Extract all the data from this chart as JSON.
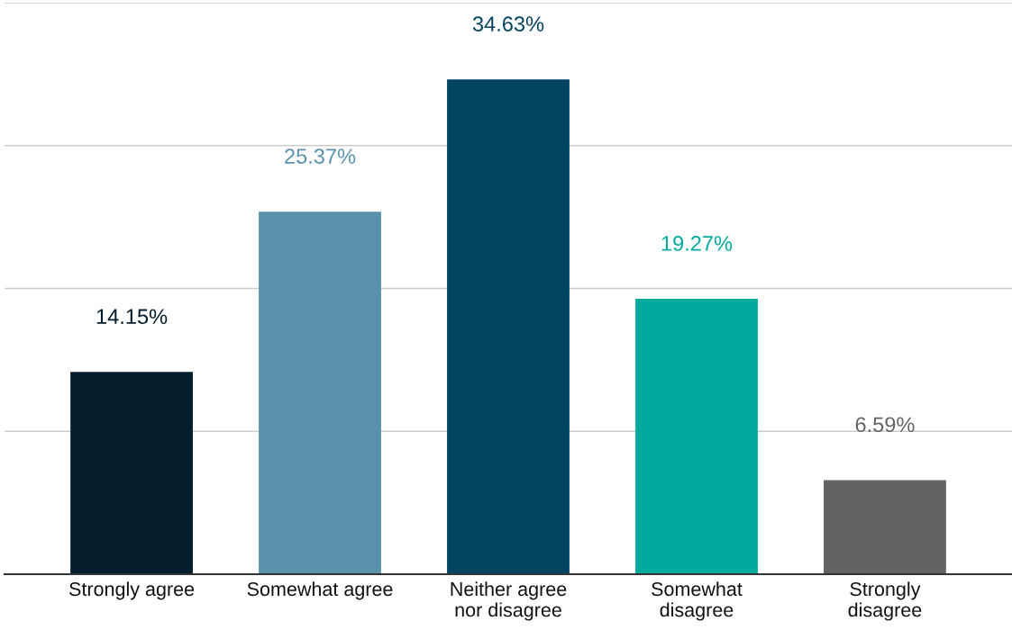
{
  "chart_data": {
    "type": "bar",
    "categories": [
      "Strongly agree",
      "Somewhat agree",
      "Neither agree\nnor disagree",
      "Somewhat\ndisagree",
      "Strongly\ndisagree"
    ],
    "values": [
      14.15,
      25.37,
      34.63,
      19.27,
      6.59
    ],
    "colors": [
      "#041e2e",
      "#5a92ae",
      "#02435f",
      "#00ab9e",
      "#636363"
    ],
    "value_labels": [
      "14.15%",
      "25.37%",
      "34.63%",
      "19.27%",
      "6.59%"
    ],
    "ylim": [
      0,
      40
    ],
    "yticks": [
      {
        "value": 0,
        "label": null
      },
      {
        "value": 10,
        "label": null
      },
      {
        "value": 20,
        "label": null
      },
      {
        "value": 30,
        "label": null
      },
      {
        "value": 40,
        "label": null
      }
    ],
    "grid": "y",
    "tick_labels": "x"
  }
}
